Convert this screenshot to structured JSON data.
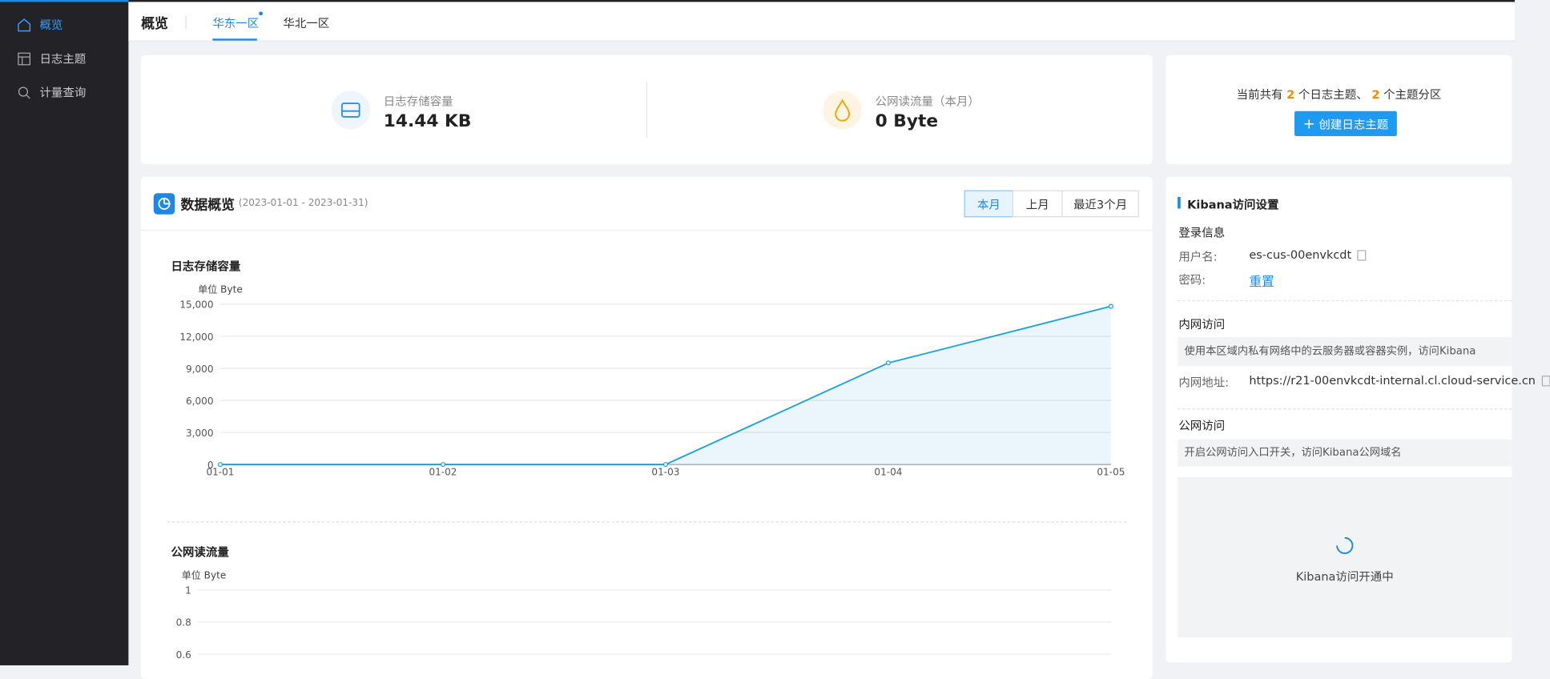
{
  "sidebar": {
    "items": [
      "概览",
      "日志主题",
      "计量查询"
    ]
  },
  "header": {
    "title": "概览",
    "tabs": [
      "华东一区",
      "华北一区"
    ]
  },
  "stats": [
    {
      "label": "日志存储容量",
      "value": "14.44 KB"
    },
    {
      "label": "公网读流量（本月）",
      "value": "0 Byte"
    }
  ],
  "summary": {
    "prefix": "当前共有",
    "topics": 2,
    "topics_unit": "个日志主题、",
    "partitions": 2,
    "partitions_unit": "个主题分区",
    "button": "创建日志主题"
  },
  "overview": {
    "title": "数据概览",
    "range": "(2023-01-01 - 2023-01-31)",
    "periods": [
      "本月",
      "上月",
      "最近3个月"
    ]
  },
  "charts": [
    {
      "type": "line",
      "title": "日志存储容量",
      "unit": "单位 Byte",
      "color": "#1a9ee0",
      "x": [
        "01-01",
        "01-02",
        "01-03",
        "01-04",
        "01-05"
      ],
      "values": [
        0,
        0,
        0,
        9500,
        14800
      ],
      "ylim": [
        0,
        15000
      ],
      "yticks": [
        0,
        {
          "value": 3000,
          "label": "3,000"
        },
        {
          "value": 6000,
          "label": "6,000"
        },
        {
          "value": 9000,
          "label": "9,000"
        },
        {
          "value": 12000,
          "label": "12,000"
        },
        {
          "value": 15000,
          "label": "15,000"
        }
      ],
      "grid": true
    },
    {
      "type": "line",
      "title": "公网读流量",
      "unit": "单位 Byte",
      "color": "#1a9ee0",
      "x": [],
      "values": [],
      "ylim": [
        0,
        1
      ],
      "yticks": [
        0.6,
        0.8,
        1
      ],
      "grid": true
    }
  ],
  "kibana": {
    "title": "Kibana访问设置",
    "login": {
      "title": "登录信息",
      "user_label": "用户名:",
      "user": "es-cus-00envkcdt",
      "pwd_label": "密码:",
      "reset": "重置"
    },
    "intranet": {
      "title": "内网访问",
      "note": "使用本区域内私有网络中的云服务器或容器实例，访问Kibana",
      "addr_label": "内网地址:",
      "addr": "https://r21-00envkcdt-internal.cl.cloud-service.cn"
    },
    "public": {
      "title": "公网访问",
      "note": "开启公网访问入口开关，访问Kibana公网域名",
      "status": "Kibana访问开通中"
    }
  }
}
